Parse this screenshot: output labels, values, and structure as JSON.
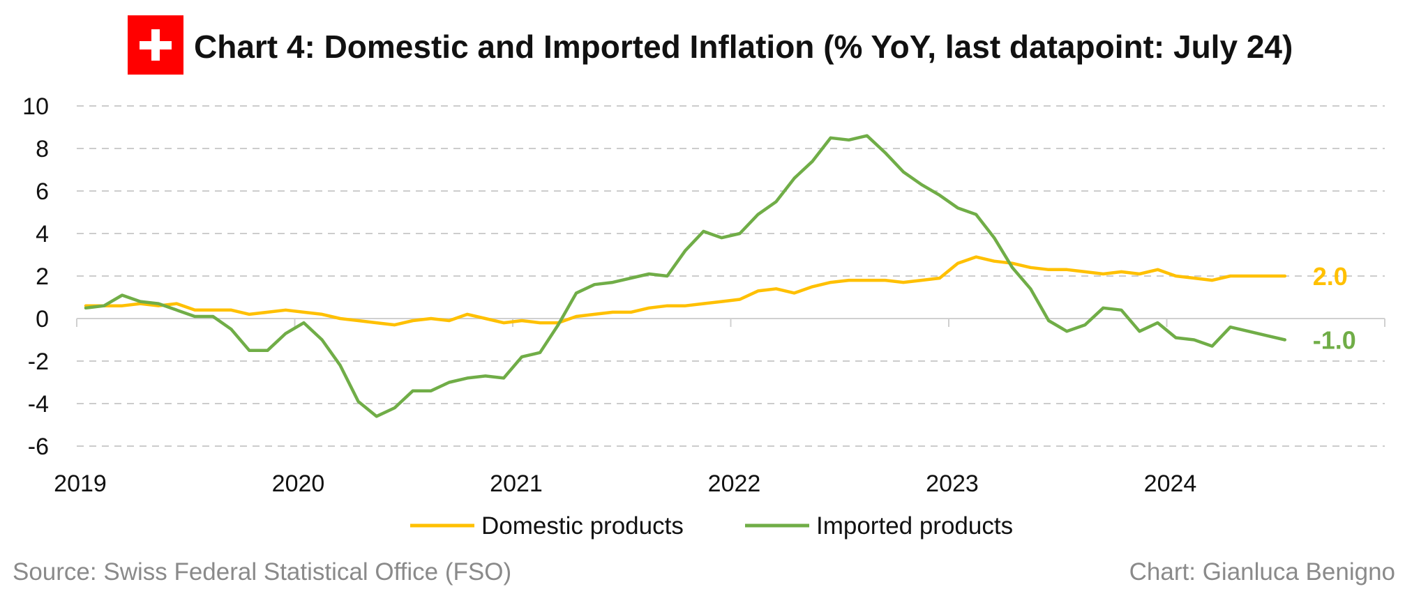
{
  "title": "Chart 4: Domestic and Imported Inflation (% YoY, last datapoint: July 24)",
  "flag_icon": "swiss-flag-icon",
  "colors": {
    "domestic": "#FFC000",
    "imported": "#70AD47",
    "flag": "#FF0000",
    "grid": "#cccccc",
    "footer": "#8a8a8a"
  },
  "footer": {
    "source": "Source: Swiss Federal Statistical Office (FSO)",
    "credit": "Chart: Gianluca Benigno"
  },
  "chart_data": {
    "type": "line",
    "title": "Chart 4: Domestic and Imported Inflation (% YoY, last datapoint: July 24)",
    "xlabel": "",
    "ylabel": "",
    "ylim": [
      -6,
      10
    ],
    "yticks": [
      "10",
      "8",
      "6",
      "4",
      "2",
      "0",
      "-2",
      "-4",
      "-6"
    ],
    "ytick_values": [
      10,
      8,
      6,
      4,
      2,
      0,
      -2,
      -4,
      -6
    ],
    "xticks": [
      "2019",
      "2020",
      "2021",
      "2022",
      "2023",
      "2024"
    ],
    "x_start": "2019-01",
    "x_end": "2024-07",
    "grid": true,
    "legend_position": "bottom",
    "series": [
      {
        "name": "Domestic products",
        "end_label": "2.0",
        "values": [
          0.6,
          0.6,
          0.6,
          0.7,
          0.6,
          0.7,
          0.4,
          0.4,
          0.4,
          0.2,
          0.3,
          0.4,
          0.3,
          0.2,
          0.0,
          -0.1,
          -0.2,
          -0.3,
          -0.1,
          0.0,
          -0.1,
          0.2,
          0.0,
          -0.2,
          -0.1,
          -0.2,
          -0.2,
          0.1,
          0.2,
          0.3,
          0.3,
          0.5,
          0.6,
          0.6,
          0.7,
          0.8,
          0.9,
          1.3,
          1.4,
          1.2,
          1.5,
          1.7,
          1.8,
          1.8,
          1.8,
          1.7,
          1.8,
          1.9,
          2.6,
          2.9,
          2.7,
          2.6,
          2.4,
          2.3,
          2.3,
          2.2,
          2.1,
          2.2,
          2.1,
          2.3,
          2.0,
          1.9,
          1.8,
          2.0,
          2.0,
          2.0,
          2.0
        ]
      },
      {
        "name": "Imported products",
        "end_label": "-1.0",
        "values": [
          0.5,
          0.6,
          1.1,
          0.8,
          0.7,
          0.4,
          0.1,
          0.1,
          -0.5,
          -1.5,
          -1.5,
          -0.7,
          -0.2,
          -1.0,
          -2.2,
          -3.9,
          -4.6,
          -4.2,
          -3.4,
          -3.4,
          -3.0,
          -2.8,
          -2.7,
          -2.8,
          -1.8,
          -1.6,
          -0.3,
          1.2,
          1.6,
          1.7,
          1.9,
          2.1,
          2.0,
          3.2,
          4.1,
          3.8,
          4.0,
          4.9,
          5.5,
          6.6,
          7.4,
          8.5,
          8.4,
          8.6,
          7.8,
          6.9,
          6.3,
          5.8,
          5.2,
          4.9,
          3.8,
          2.4,
          1.4,
          -0.1,
          -0.6,
          -0.3,
          0.5,
          0.4,
          -0.6,
          -0.2,
          -0.9,
          -1.0,
          -1.3,
          -0.4,
          -0.6,
          -0.8,
          -1.0
        ]
      }
    ]
  }
}
